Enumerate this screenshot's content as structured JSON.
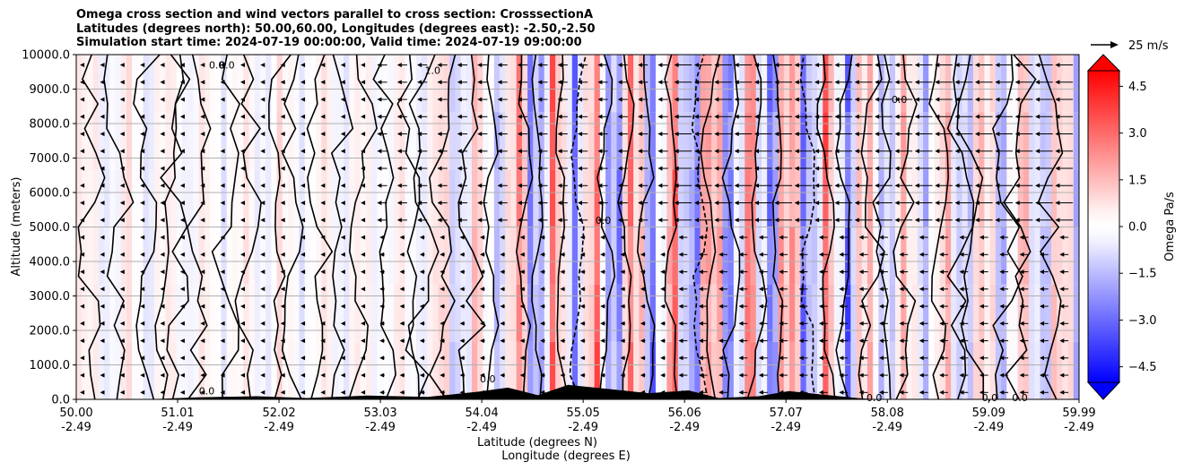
{
  "chart_data": {
    "type": "heatmap",
    "title_lines": [
      "Omega cross section and wind vectors parallel to cross section: CrosssectionA",
      "Latitudes (degrees north): 50.00,60.00, Longitudes (degrees east): -2.50,-2.50",
      "Simulation start time: 2024-07-19 00:00:00, Valid time: 2024-07-19 09:00:00"
    ],
    "ylabel": "Altitude (meters)",
    "xlabel_lat": "Latitude (degrees N)",
    "xlabel_lon": "Longitude (degrees E)",
    "ylim": [
      0,
      10000
    ],
    "xlim": [
      50.0,
      59.99
    ],
    "y_ticks": [
      {
        "value": 0,
        "label": "0.0"
      },
      {
        "value": 1000,
        "label": "1000.0"
      },
      {
        "value": 2000,
        "label": "2000.0"
      },
      {
        "value": 3000,
        "label": "3000.0"
      },
      {
        "value": 4000,
        "label": "4000.0"
      },
      {
        "value": 5000,
        "label": "5000.0"
      },
      {
        "value": 6000,
        "label": "6000.0"
      },
      {
        "value": 7000,
        "label": "7000.0"
      },
      {
        "value": 8000,
        "label": "8000.0"
      },
      {
        "value": 9000,
        "label": "9000.0"
      },
      {
        "value": 10000,
        "label": "10000.0"
      }
    ],
    "x_ticks": [
      {
        "value": 50.0,
        "lat": "50.00",
        "lon": "-2.49"
      },
      {
        "value": 51.01,
        "lat": "51.01",
        "lon": "-2.49"
      },
      {
        "value": 52.02,
        "lat": "52.02",
        "lon": "-2.49"
      },
      {
        "value": 53.03,
        "lat": "53.03",
        "lon": "-2.49"
      },
      {
        "value": 54.04,
        "lat": "54.04",
        "lon": "-2.49"
      },
      {
        "value": 55.05,
        "lat": "55.05",
        "lon": "-2.49"
      },
      {
        "value": 56.06,
        "lat": "56.06",
        "lon": "-2.49"
      },
      {
        "value": 57.07,
        "lat": "57.07",
        "lon": "-2.49"
      },
      {
        "value": 58.08,
        "lat": "58.08",
        "lon": "-2.49"
      },
      {
        "value": 59.09,
        "lat": "59.09",
        "lon": "-2.49"
      },
      {
        "value": 59.99,
        "lat": "59.99",
        "lon": "-2.49"
      }
    ],
    "grid": "horizontal",
    "colorbar": {
      "label": "Omega Pa/s",
      "range": [
        -5.0,
        5.0
      ],
      "ticks": [
        {
          "value": 4.5,
          "label": "4.5"
        },
        {
          "value": 3.0,
          "label": "3.0"
        },
        {
          "value": 1.5,
          "label": "1.5"
        },
        {
          "value": 0.0,
          "label": "0.0"
        },
        {
          "value": -1.5,
          "label": "−1.5"
        },
        {
          "value": -3.0,
          "label": "−3.0"
        },
        {
          "value": -4.5,
          "label": "−4.5"
        }
      ],
      "extend": "both",
      "colormap": "bwr"
    },
    "vector_key": {
      "label": "25 m/s",
      "speed": 25
    },
    "contour_labels": [
      {
        "text": "0.0",
        "lat": 51.4,
        "alt": 9700
      },
      {
        "text": "0.0",
        "lat": 51.5,
        "alt": 9700
      },
      {
        "text": "1.0",
        "lat": 53.55,
        "alt": 9550
      },
      {
        "text": "0.0",
        "lat": 55.25,
        "alt": 5200
      },
      {
        "text": "0.0",
        "lat": 58.2,
        "alt": 8700
      },
      {
        "text": "0.0",
        "lat": 54.1,
        "alt": 600
      },
      {
        "text": "0.0",
        "lat": 59.1,
        "alt": 50
      },
      {
        "text": "0.0",
        "lat": 59.4,
        "alt": 50
      },
      {
        "text": "0.0",
        "lat": 57.95,
        "alt": 50
      },
      {
        "text": "0.0",
        "lat": 51.3,
        "alt": 250
      }
    ]
  }
}
